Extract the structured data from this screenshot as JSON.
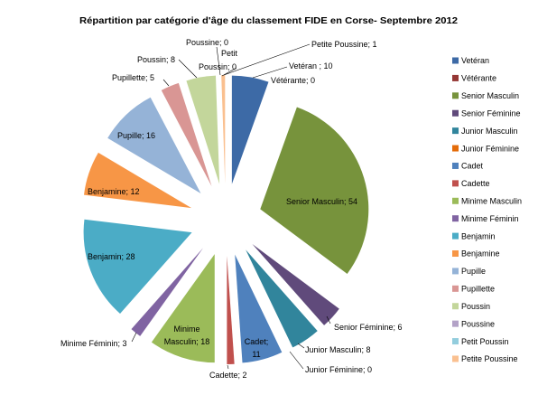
{
  "chart_data": {
    "type": "pie",
    "title": "Répartition par catégorie d'âge du classement FIDE en Corse- Septembre 2012",
    "categories": [
      "Vetéran",
      "Vétérante",
      "Senior Masculin",
      "Senior Féminine",
      "Junior Masculin",
      "Junior Féminine",
      "Cadet",
      "Cadette",
      "Minime Masculin",
      "Minime Féminin",
      "Benjamin",
      "Benjamine",
      "Pupille",
      "Pupillette",
      "Poussin",
      "Poussine",
      "Petit Poussin",
      "Petite Poussine"
    ],
    "values": [
      10,
      0,
      54,
      6,
      8,
      0,
      11,
      2,
      18,
      3,
      28,
      12,
      16,
      5,
      8,
      0,
      0,
      1
    ],
    "data_labels": [
      [
        "Vetéran ; 10"
      ],
      [
        "Vétérante; 0"
      ],
      [
        "Senior Masculin; 54"
      ],
      [
        "Senior Féminine; 6"
      ],
      [
        "Junior Masculin; 8"
      ],
      [
        "Junior Féminine; 0"
      ],
      [
        "Cadet;",
        "11"
      ],
      [
        "Cadette; 2"
      ],
      [
        "Minime",
        "Masculin; 18"
      ],
      [
        "Minime Féminin; 3"
      ],
      [
        "Benjamin; 28"
      ],
      [
        "Benjamine; 12"
      ],
      [
        "Pupille; 16"
      ],
      [
        "Pupillette; 5"
      ],
      [
        "Poussin; 8"
      ],
      [
        "Poussine; 0"
      ],
      [
        "Petit",
        "Poussin; 0"
      ],
      [
        "Petite Poussine; 1"
      ]
    ],
    "colors": [
      "#3D6AA6",
      "#953735",
      "#77933C",
      "#604A7B",
      "#31859C",
      "#E46C0A",
      "#4F81BD",
      "#C0504D",
      "#9BBB59",
      "#8064A2",
      "#4BACC6",
      "#F79646",
      "#95B3D7",
      "#D99694",
      "#C3D69B",
      "#B3A2C7",
      "#93CDDD",
      "#FAC090"
    ],
    "exploded": true,
    "legend_position": "right"
  }
}
